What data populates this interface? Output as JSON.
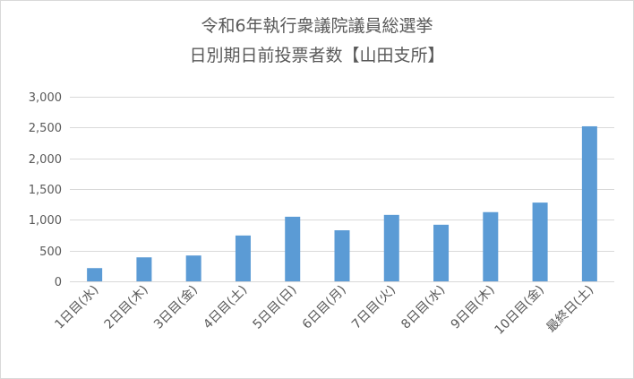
{
  "chart_data": {
    "type": "bar",
    "title_lines": [
      "令和6年執行衆議院議員総選挙",
      "日別期日前投票者数【山田支所】"
    ],
    "categories": [
      "1日目(水)",
      "2日目(木)",
      "3日目(金)",
      "4日目(土)",
      "5日目(日)",
      "6日目(月)",
      "7日目(火)",
      "8日目(水)",
      "9日目(木)",
      "10日目(金)",
      "最終日(土)"
    ],
    "values": [
      215,
      390,
      420,
      745,
      1050,
      830,
      1080,
      920,
      1125,
      1280,
      2520
    ],
    "ylim": [
      0,
      3000
    ],
    "yticks": [
      0,
      500,
      1000,
      1500,
      2000,
      2500,
      3000
    ],
    "ytick_labels": [
      "0",
      "500",
      "1,000",
      "1,500",
      "2,000",
      "2,500",
      "3,000"
    ],
    "xlabel": "",
    "ylabel": "",
    "grid": true,
    "bar_color": "#5b9bd5",
    "grid_color": "#d9d9d9"
  }
}
